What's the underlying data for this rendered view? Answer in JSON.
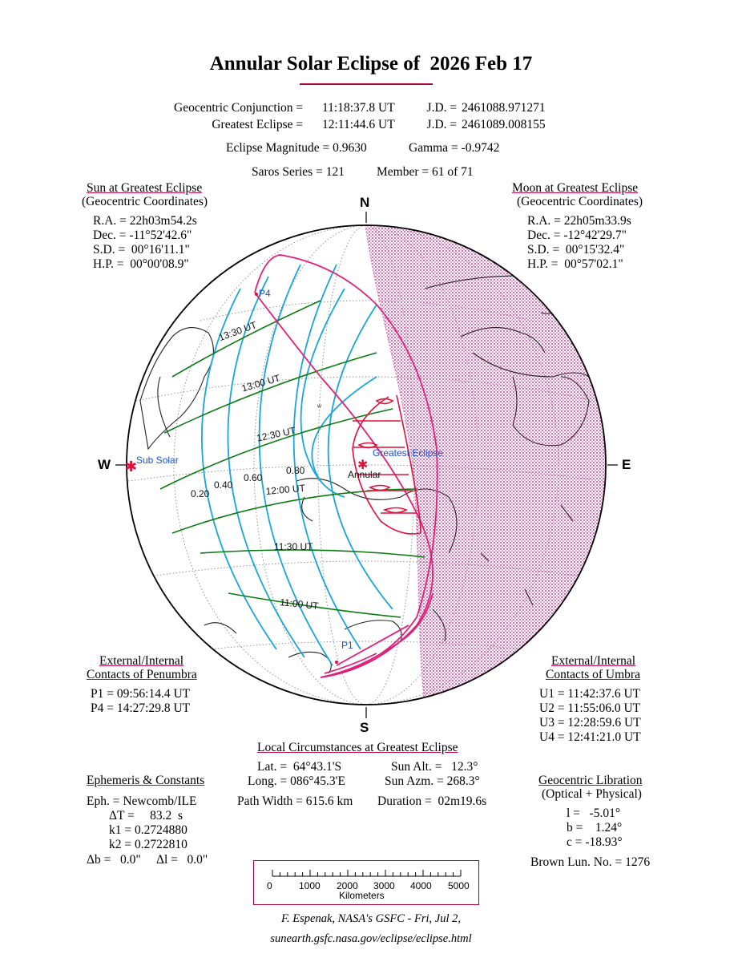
{
  "title": "Annular Solar Eclipse of  2026 Feb 17",
  "conjunction": {
    "label": "Geocentric Conjunction = ",
    "time": "11:18:37.8 UT",
    "jd_label": "J.D. = ",
    "jd": "2461088.971271"
  },
  "greatest": {
    "label": "Greatest Eclipse = ",
    "time": "12:11:44.6 UT",
    "jd_label": "J.D. = ",
    "jd": "2461089.008155"
  },
  "magnitude": {
    "label": "Eclipse Magnitude = ",
    "value": "0.9630"
  },
  "gamma": {
    "label": "Gamma = ",
    "value": "-0.9742"
  },
  "saros": {
    "label": "Saros Series = ",
    "value": "121"
  },
  "member": {
    "label": "Member = ",
    "value": "61 of 71"
  },
  "sun": {
    "heading": "Sun at Greatest Eclipse",
    "subheading": "(Geocentric Coordinates)",
    "ra": "R.A. = 22h03m54.2s",
    "dec": "Dec. = -11°52'42.6\"",
    "sd": "S.D. =  00°16'11.1\"",
    "hp": "H.P. =  00°00'08.9\""
  },
  "moon": {
    "heading": "Moon at Greatest Eclipse",
    "subheading": "(Geocentric Coordinates)",
    "ra": "R.A. = 22h05m33.9s",
    "dec": "Dec. = -12°42'29.7\"",
    "sd": "S.D. =  00°15'32.4\"",
    "hp": "H.P. =  00°57'02.1\""
  },
  "directions": {
    "n": "N",
    "s": "S",
    "w": "W",
    "e": "E"
  },
  "map": {
    "time_labels": [
      "13:30 UT",
      "13:00 UT",
      "12:30 UT",
      "12:00 UT",
      "11:30 UT",
      "11:00 UT"
    ],
    "magnitude_labels": [
      "0.20",
      "0.40",
      "0.60",
      "0.80"
    ],
    "p4": "P4",
    "p1": "P1",
    "sub_solar": "Sub Solar",
    "greatest_eclipse": "Greatest Eclipse",
    "annular": "Annular",
    "colors": {
      "penumbra": "#e0207a",
      "umbra": "#e0103a",
      "magnitude": "#1aa6d8",
      "time": "#0a7a12",
      "land": "#222222",
      "night": "#d670b8",
      "frame_accent": "#a0003c"
    }
  },
  "penumbra": {
    "heading": "External/Internal",
    "heading2": "Contacts of Penumbra",
    "p1": "P1 = 09:56:14.4 UT",
    "p4": "P4 = 14:27:29.8 UT"
  },
  "umbra": {
    "heading": "External/Internal",
    "heading2": "Contacts of Umbra",
    "u1": "U1 = 11:42:37.6 UT",
    "u2": "U2 = 11:55:06.0 UT",
    "u3": "U3 = 12:28:59.6 UT",
    "u4": "U4 = 12:41:21.0 UT"
  },
  "local": {
    "heading": "Local Circumstances at Greatest Eclipse",
    "lat": "Lat. =  64°43.1'S",
    "long": "Long. = 086°45.3'E",
    "path_width": "Path Width = 615.6 km",
    "sun_alt": "Sun Alt. =   12.3°",
    "sun_azm": "Sun Azm. = 268.3°",
    "duration": "Duration =  02m19.6s"
  },
  "ephemeris": {
    "heading": "Ephemeris & Constants",
    "eph": "Eph. = Newcomb/ILE",
    "delta_t": "ΔT =     83.2  s",
    "k1": "k1 = 0.2724880",
    "k2": "k2 = 0.2722810",
    "db": "Δb =   0.0\"     Δl =   0.0\""
  },
  "libration": {
    "heading": "Geocentric Libration",
    "subheading": "(Optical + Physical)",
    "l": "l =   -5.01°",
    "b": "b =    1.24°",
    "c": "c = -18.93°",
    "brown": "Brown Lun. No. = 1276"
  },
  "scale": {
    "ticks": [
      "0",
      "1000",
      "2000",
      "3000",
      "4000",
      "5000"
    ],
    "unit": "Kilometers"
  },
  "credit": {
    "line1": "F. Espenak, NASA's GSFC - Fri, Jul 2,",
    "line2": "sunearth.gsfc.nasa.gov/eclipse/eclipse.html"
  }
}
